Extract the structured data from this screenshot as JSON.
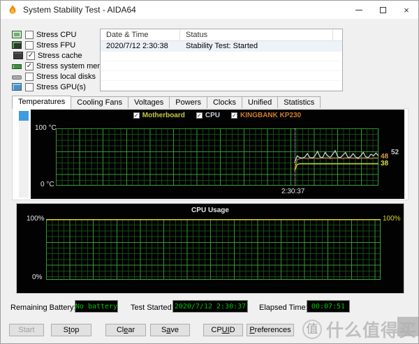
{
  "window": {
    "title": "System Stability Test - AIDA64"
  },
  "stress_options": [
    {
      "icon": "cpu-icon",
      "label": "Stress CPU",
      "checked": false
    },
    {
      "icon": "fpu-icon",
      "label": "Stress FPU",
      "checked": false
    },
    {
      "icon": "cache-icon",
      "label": "Stress cache",
      "checked": true
    },
    {
      "icon": "memory-icon",
      "label": "Stress system memory",
      "checked": true
    },
    {
      "icon": "disk-icon",
      "label": "Stress local disks",
      "checked": false
    },
    {
      "icon": "gpu-icon",
      "label": "Stress GPU(s)",
      "checked": false
    }
  ],
  "log_table": {
    "columns": [
      "Date & Time",
      "Status"
    ],
    "rows": [
      {
        "datetime": "2020/7/12 2:30:38",
        "status": "Stability Test: Started"
      }
    ]
  },
  "tabs": {
    "active": "Temperatures",
    "items": [
      "Temperatures",
      "Cooling Fans",
      "Voltages",
      "Powers",
      "Clocks",
      "Unified",
      "Statistics"
    ]
  },
  "chart_data": [
    {
      "type": "line",
      "name": "temperatures",
      "ylim": [
        0,
        100
      ],
      "y_top_label": "100 °C",
      "y_bottom_label": "0 °C",
      "x_cursor_label": "2:30:37",
      "grid": true,
      "legend_position": "top-center",
      "legend": [
        {
          "label": "Motherboard",
          "color": "#c9c93e",
          "checked": true
        },
        {
          "label": "CPU",
          "color": "#c7cdd9",
          "checked": true
        },
        {
          "label": "KINGBANK KP230",
          "color": "#cf7d2a",
          "checked": true
        }
      ],
      "series": [
        {
          "name": "Motherboard",
          "color": "#d6d63a",
          "width": 1.3,
          "x_start_frac": 0.74,
          "current": 38,
          "values": [
            26,
            37,
            38,
            38,
            38,
            38,
            38,
            38,
            38,
            38,
            38,
            38,
            38,
            38,
            38,
            38,
            38,
            38,
            38,
            38,
            38,
            38,
            38,
            38,
            38,
            38,
            38,
            38,
            38,
            38,
            38,
            38,
            38,
            38
          ]
        },
        {
          "name": "KINGBANK KP230",
          "color": "#b5793a",
          "width": 1.2,
          "x_start_frac": 0.74,
          "current": 48,
          "values": [
            30,
            45,
            47,
            48,
            48,
            47,
            48,
            48,
            48,
            47,
            48,
            48,
            48,
            48,
            47,
            48,
            48,
            48,
            48,
            47,
            48,
            48,
            48,
            48,
            48,
            47,
            48,
            48,
            48,
            48,
            47,
            48,
            48,
            48
          ]
        },
        {
          "name": "CPU",
          "color": "#d6dade",
          "width": 1.2,
          "x_start_frac": 0.74,
          "current": 52,
          "values": [
            40,
            52,
            49,
            48,
            50,
            56,
            49,
            48,
            52,
            60,
            50,
            49,
            58,
            52,
            49,
            55,
            61,
            50,
            49,
            53,
            58,
            49,
            50,
            56,
            50,
            48,
            52,
            58,
            50,
            49,
            55,
            52,
            57,
            52
          ]
        }
      ],
      "value_labels": [
        {
          "text": "48",
          "color": "#e09a40"
        },
        {
          "text": "52",
          "color": "#cccccc"
        },
        {
          "text": "38",
          "color": "#dede3c"
        }
      ]
    },
    {
      "type": "line",
      "name": "cpu-usage",
      "title": "CPU Usage",
      "ylim": [
        0,
        100
      ],
      "y_top_label": "100%",
      "y_bottom_label": "0%",
      "y_right_label": "100%",
      "grid": true,
      "series": [
        {
          "name": "CPU Usage",
          "color": "#d8d820",
          "width": 1.5,
          "x_start_frac": 0,
          "current": 100,
          "values": [
            100,
            100,
            100,
            100,
            100,
            100,
            100,
            100,
            100,
            100,
            100,
            100,
            100,
            100,
            100,
            100,
            100,
            100,
            100,
            100,
            100,
            100,
            100,
            100,
            100,
            100,
            100,
            100,
            100,
            100
          ]
        }
      ]
    }
  ],
  "status_bar": {
    "battery_label": "Remaining Battery:",
    "battery_value": "No battery",
    "started_label": "Test Started:",
    "started_value": "2020/7/12 2:30:37",
    "elapsed_label": "Elapsed Time:",
    "elapsed_value": "00:07:51",
    "lcd_text_color": "#00c800"
  },
  "buttons": [
    {
      "label": "Start",
      "mnemonic": "",
      "enabled": false
    },
    {
      "label": "Stop",
      "mnemonic": "t",
      "enabled": true
    },
    {
      "label": "Clear",
      "mnemonic": "e",
      "enabled": true
    },
    {
      "label": "Save",
      "mnemonic": "a",
      "enabled": true
    },
    {
      "label": "CPUID",
      "mnemonic": "UI",
      "enabled": true
    },
    {
      "label": "Preferences",
      "mnemonic": "P",
      "enabled": true
    }
  ],
  "watermark": {
    "logo": "值",
    "text": "什么值得买"
  }
}
